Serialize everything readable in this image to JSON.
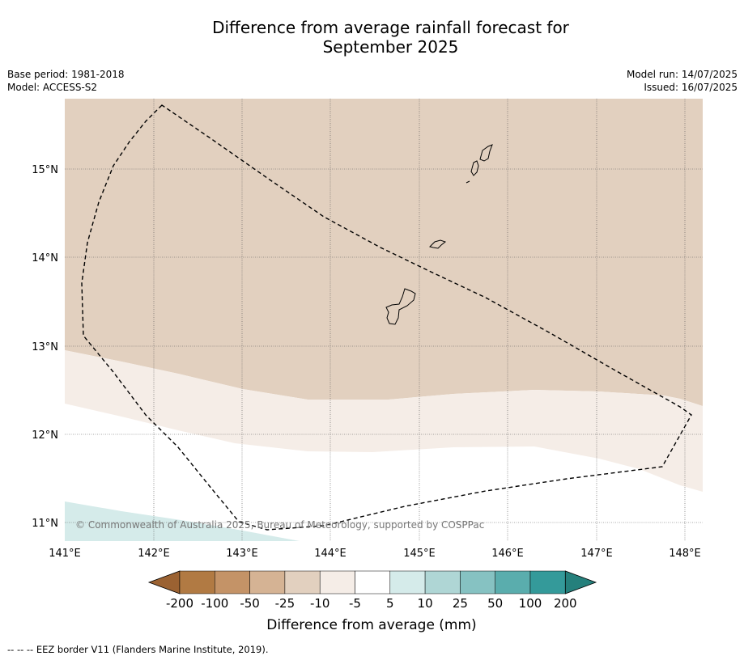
{
  "title_line1": "Difference from average rainfall forecast for",
  "title_line2": "September 2025",
  "meta_left": {
    "base_period": "Base period: 1981-2018",
    "model": "Model: ACCESS-S2"
  },
  "meta_right": {
    "model_run": "Model run: 14/07/2025",
    "issued": "Issued: 16/07/2025"
  },
  "map": {
    "lon_labels": [
      "141°E",
      "142°E",
      "143°E",
      "144°E",
      "145°E",
      "146°E",
      "147°E",
      "148°E"
    ],
    "lat_labels": [
      "15°N",
      "14°N",
      "13°N",
      "12°N",
      "11°N"
    ],
    "copyright": "© Commonwealth of Australia 2025, Bureau of Meteorology, supported by COSPPac"
  },
  "colorbar": {
    "labels": [
      "-200",
      "-100",
      "-50",
      "-25",
      "-10",
      "-5",
      "5",
      "10",
      "25",
      "50",
      "100",
      "200"
    ],
    "colors": [
      "#9b6232",
      "#b17a43",
      "#c49367",
      "#d5b394",
      "#e2d0bf",
      "#f5ede7",
      "#ffffff",
      "#d5ebea",
      "#afd6d5",
      "#86c2c2",
      "#5aadad",
      "#349a9a",
      "#25807c"
    ],
    "title": "Difference from average (mm)"
  },
  "footnote": "--  --  -- EEZ border V11 (Flanders Marine Institute, 2019)."
}
